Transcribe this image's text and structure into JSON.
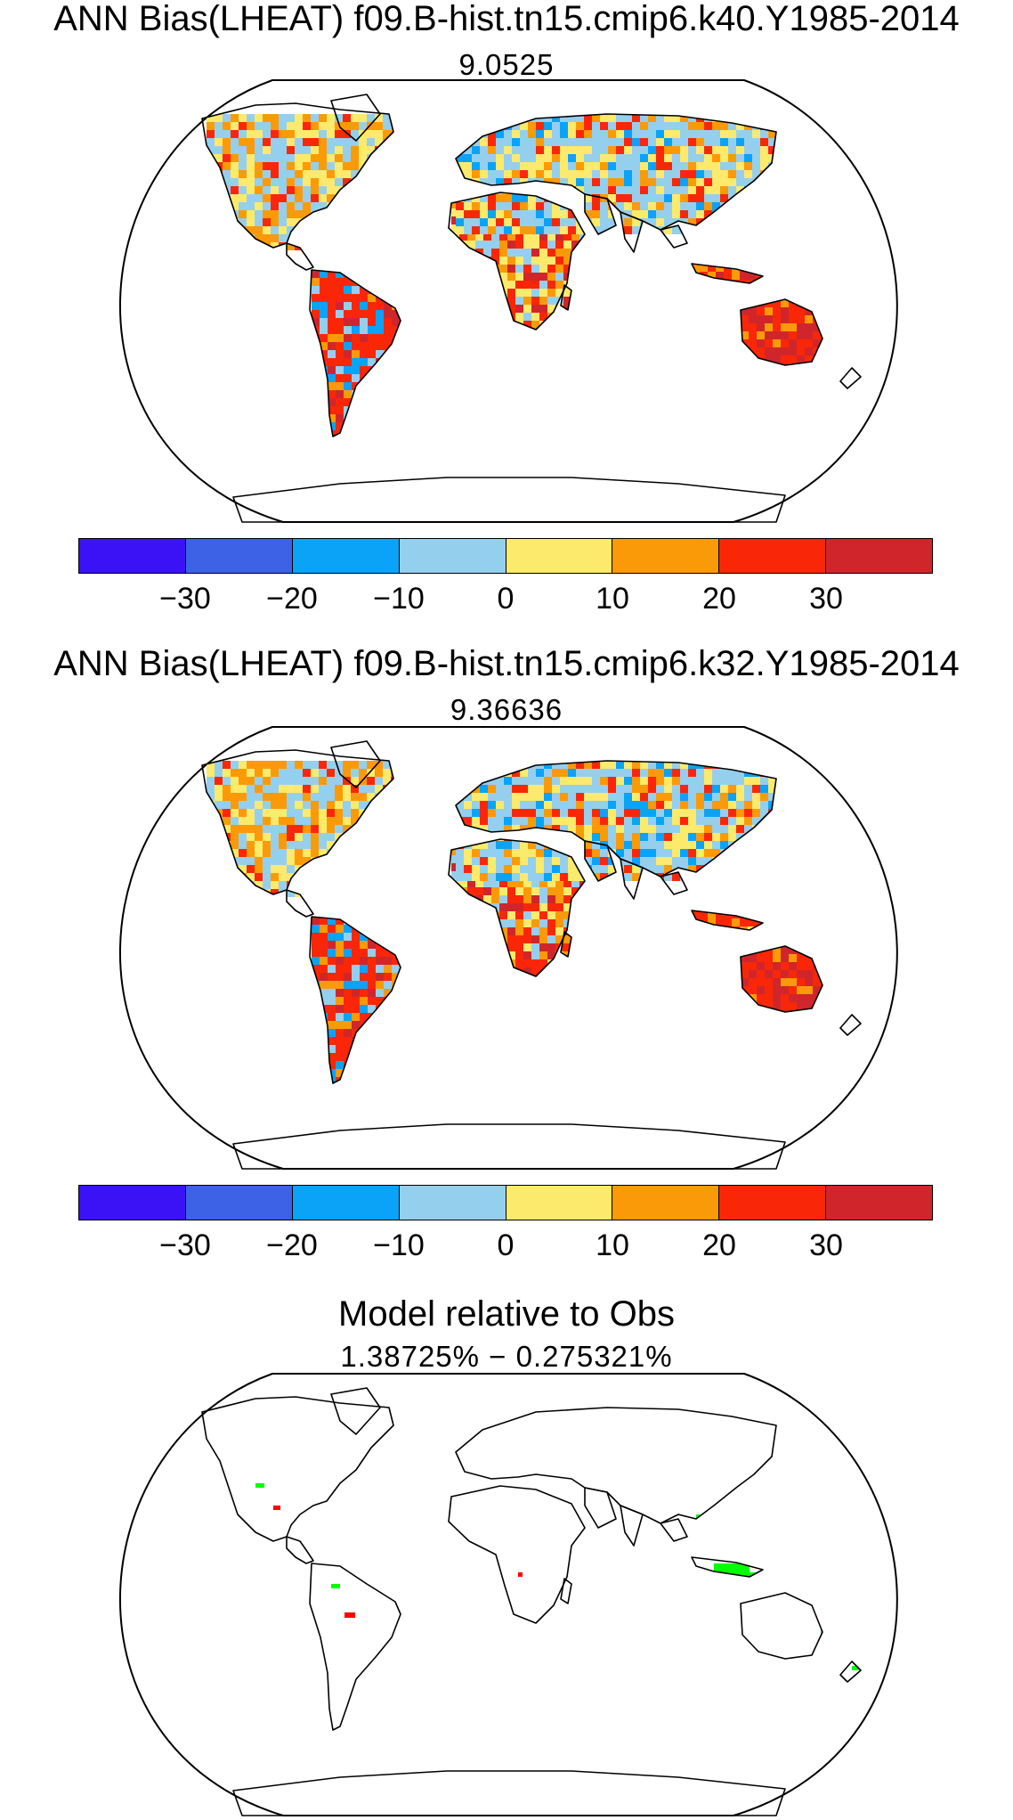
{
  "panels": [
    {
      "title": "ANN Bias(LHEAT) f09.B-hist.tn15.cmip6.k40.Y1985-2014",
      "subtitle": "9.0525"
    },
    {
      "title": "ANN Bias(LHEAT) f09.B-hist.tn15.cmip6.k32.Y1985-2014",
      "subtitle": "9.36636"
    },
    {
      "title": "Model relative to Obs",
      "subtitle": "1.38725% − 0.275321%"
    }
  ],
  "colorbar": {
    "colors": [
      "#3a12f5",
      "#3d62e6",
      "#0aa3f7",
      "#95cfee",
      "#fbea6b",
      "#fb9a08",
      "#f92707",
      "#d0262b"
    ],
    "tick_labels": [
      "−30",
      "−20",
      "−10",
      "0",
      "10",
      "20",
      "30"
    ]
  },
  "colors": {
    "land_outline": "#000000",
    "diff_positive": "#00ff00",
    "diff_negative": "#ff0000"
  }
}
